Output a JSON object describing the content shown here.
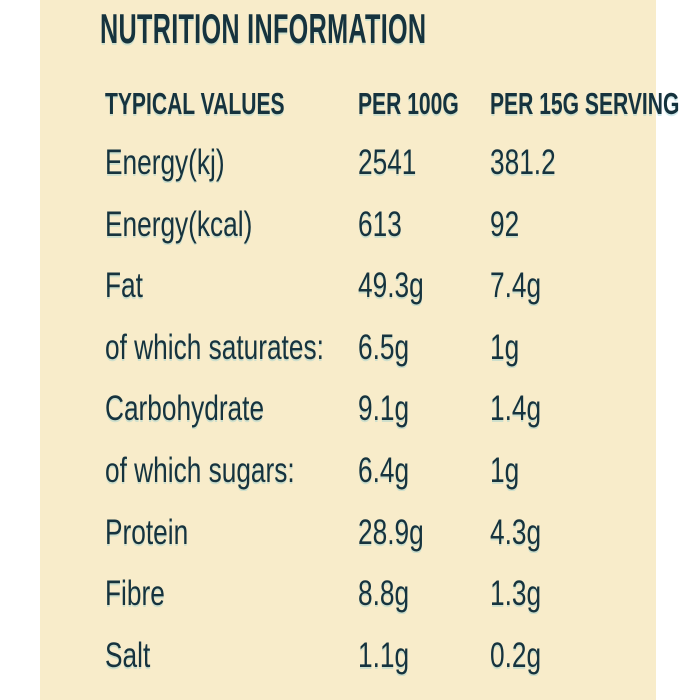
{
  "colors": {
    "page_background": "#ffffff",
    "panel_background": "#f8ecca",
    "ink": "#16333e"
  },
  "title": "NUTRITION INFORMATION",
  "table": {
    "col_headers": [
      "TYPICAL VALUES",
      "PER 100G",
      "PER 15G SERVING"
    ],
    "rows": [
      {
        "label": "Energy(kj)",
        "per_100g": "2541",
        "per_15g_serving": "381.2"
      },
      {
        "label": "Energy(kcal)",
        "per_100g": "613",
        "per_15g_serving": "92"
      },
      {
        "label": "Fat",
        "per_100g": "49.3g",
        "per_15g_serving": "7.4g"
      },
      {
        "label": "of which saturates:",
        "per_100g": "6.5g",
        "per_15g_serving": "1g"
      },
      {
        "label": "Carbohydrate",
        "per_100g": "9.1g",
        "per_15g_serving": "1.4g"
      },
      {
        "label": "of which sugars:",
        "per_100g": "6.4g",
        "per_15g_serving": "1g"
      },
      {
        "label": "Protein",
        "per_100g": "28.9g",
        "per_15g_serving": "4.3g"
      },
      {
        "label": "Fibre",
        "per_100g": "8.8g",
        "per_15g_serving": "1.3g"
      },
      {
        "label": "Salt",
        "per_100g": "1.1g",
        "per_15g_serving": "0.2g"
      }
    ]
  }
}
